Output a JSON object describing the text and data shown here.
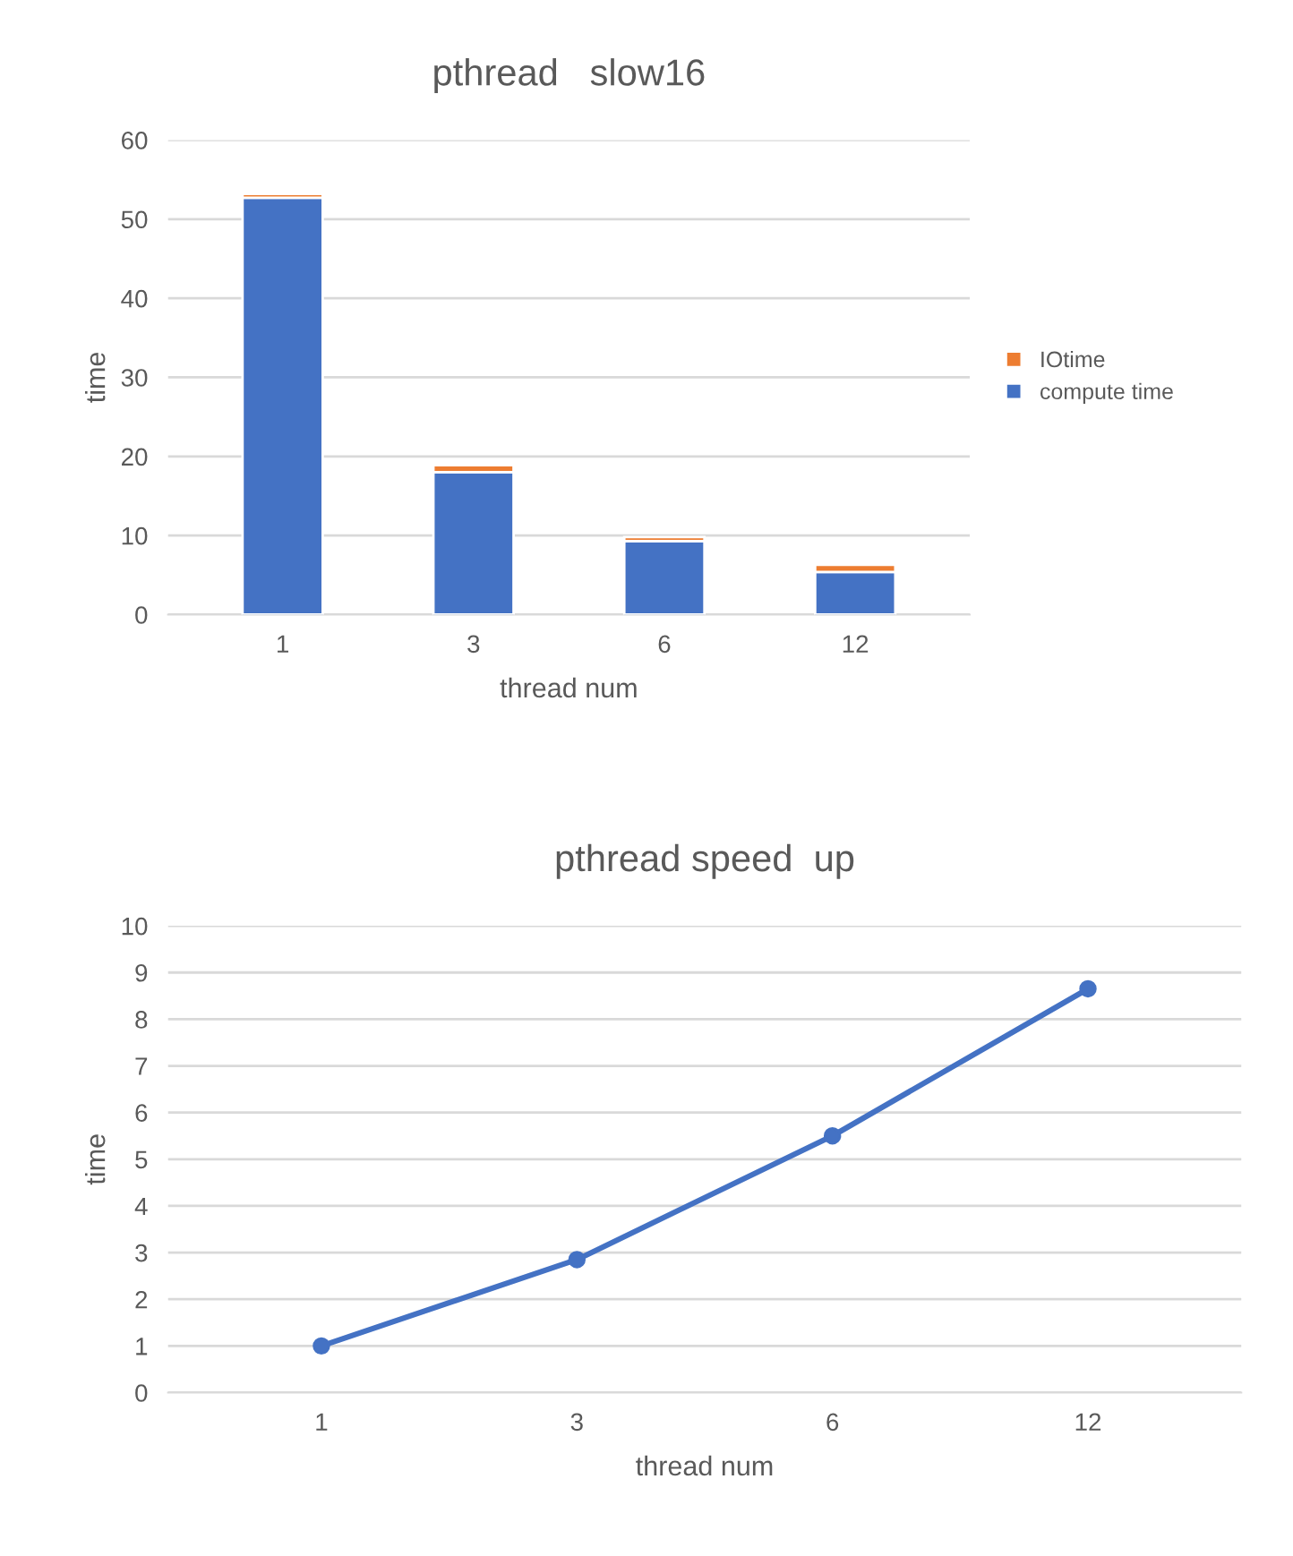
{
  "chart_data": [
    {
      "type": "bar",
      "title": "pthread   slow16",
      "xlabel": "thread num",
      "ylabel": "time",
      "categories": [
        "1",
        "3",
        "6",
        "12"
      ],
      "stacked": true,
      "series": [
        {
          "name": "compute time",
          "color": "#4472c4",
          "values": [
            52.7,
            18.0,
            9.3,
            5.4
          ]
        },
        {
          "name": "IOtime",
          "color": "#ed7d31",
          "values": [
            0.5,
            0.9,
            0.5,
            0.9
          ]
        }
      ],
      "ylim": [
        0,
        60
      ],
      "yticks": [
        0,
        10,
        20,
        30,
        40,
        50,
        60
      ],
      "grid": "y",
      "legend": "right"
    },
    {
      "type": "line",
      "title": "pthread speed  up",
      "xlabel": "thread num",
      "ylabel": "time",
      "categories": [
        "1",
        "3",
        "6",
        "12"
      ],
      "series": [
        {
          "color": "#4472c4",
          "values": [
            1.0,
            2.85,
            5.5,
            8.65
          ]
        }
      ],
      "ylim": [
        0,
        10
      ],
      "yticks": [
        0,
        1,
        2,
        3,
        4,
        5,
        6,
        7,
        8,
        9,
        10
      ],
      "grid": "y",
      "marker": "circle",
      "line_style": "solid"
    }
  ]
}
